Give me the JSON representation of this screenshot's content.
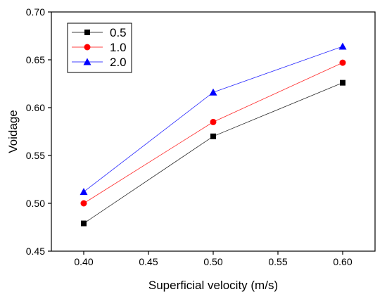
{
  "chart_data": {
    "type": "line",
    "title": "",
    "xlabel": "Superficial velocity (m/s)",
    "ylabel": "Voidage",
    "x": [
      0.4,
      0.5,
      0.6
    ],
    "xlim": [
      0.375,
      0.625
    ],
    "ylim": [
      0.45,
      0.7
    ],
    "x_ticks": [
      "0.40",
      "0.45",
      "0.50",
      "0.55",
      "0.60"
    ],
    "x_tick_values": [
      0.4,
      0.45,
      0.5,
      0.55,
      0.6
    ],
    "y_ticks": [
      "0.45",
      "0.50",
      "0.55",
      "0.60",
      "0.65",
      "0.70"
    ],
    "y_tick_values": [
      0.45,
      0.5,
      0.55,
      0.6,
      0.65,
      0.7
    ],
    "grid": false,
    "legend_position": "top-left",
    "series": [
      {
        "name": "0.5",
        "values": [
          0.479,
          0.57,
          0.626
        ],
        "color": "#000000",
        "marker": "square"
      },
      {
        "name": "1.0",
        "values": [
          0.5,
          0.585,
          0.647
        ],
        "color": "#ff0000",
        "marker": "circle"
      },
      {
        "name": "2.0",
        "values": [
          0.512,
          0.616,
          0.664
        ],
        "color": "#0000ff",
        "marker": "triangle"
      }
    ]
  }
}
